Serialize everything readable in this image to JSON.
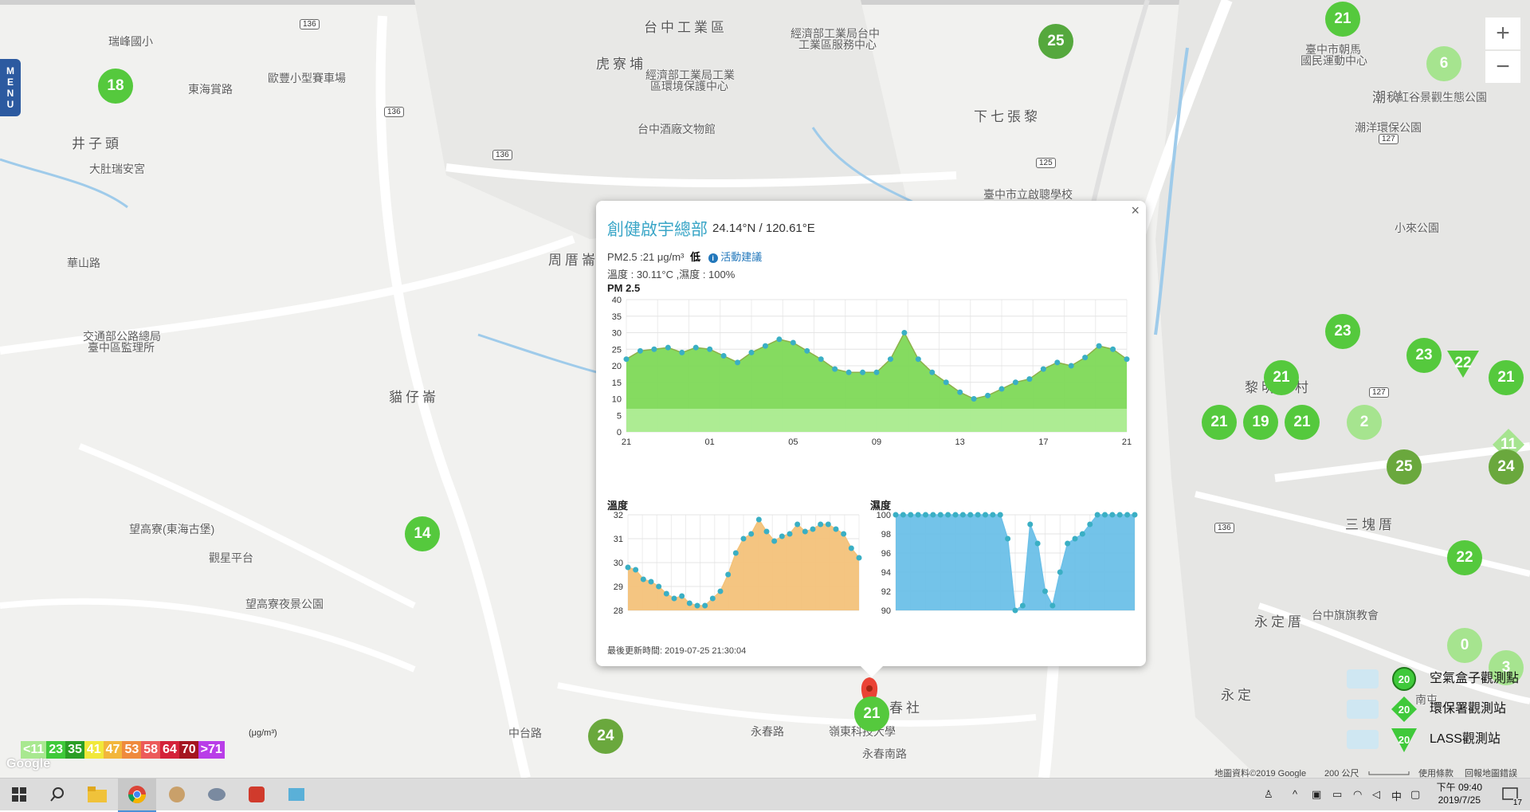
{
  "map": {
    "labels": [
      {
        "text": "台中工業區",
        "cls": "big",
        "x": 808,
        "y": 20
      },
      {
        "text": "瑞峰國小",
        "cls": "",
        "x": 136,
        "y": 42
      },
      {
        "text": "虎寮埔",
        "cls": "big",
        "x": 748,
        "y": 66
      },
      {
        "text": "經濟部工業局台中",
        "cls": "",
        "x": 992,
        "y": 32
      },
      {
        "text": "工業區服務中心",
        "cls": "",
        "x": 1002,
        "y": 46
      },
      {
        "text": "經濟部工業局工業",
        "cls": "",
        "x": 810,
        "y": 84
      },
      {
        "text": "區環境保護中心",
        "cls": "",
        "x": 816,
        "y": 98
      },
      {
        "text": "東海賞路",
        "cls": "",
        "x": 236,
        "y": 102
      },
      {
        "text": "歐豐小型賽車場",
        "cls": "",
        "x": 336,
        "y": 88
      },
      {
        "text": "井子頭",
        "cls": "big",
        "x": 90,
        "y": 166
      },
      {
        "text": "台中酒廠文物館",
        "cls": "",
        "x": 800,
        "y": 152
      },
      {
        "text": "下七張黎",
        "cls": "big",
        "x": 1222,
        "y": 132
      },
      {
        "text": "大肚瑞安宮",
        "cls": "",
        "x": 112,
        "y": 202
      },
      {
        "text": "臺中市立啟聰學校",
        "cls": "",
        "x": 1234,
        "y": 234
      },
      {
        "text": "周厝崙",
        "cls": "big",
        "x": 688,
        "y": 312
      },
      {
        "text": "華山路",
        "cls": "",
        "x": 84,
        "y": 320
      },
      {
        "text": "交通部公路總局",
        "cls": "",
        "x": 104,
        "y": 412
      },
      {
        "text": "臺中區監理所",
        "cls": "",
        "x": 110,
        "y": 426
      },
      {
        "text": "貓仔崙",
        "cls": "big",
        "x": 488,
        "y": 484
      },
      {
        "text": "潮洋",
        "cls": "big",
        "x": 1722,
        "y": 108
      },
      {
        "text": "臺中市朝馬",
        "cls": "",
        "x": 1638,
        "y": 52
      },
      {
        "text": "國民運動中心",
        "cls": "",
        "x": 1632,
        "y": 66
      },
      {
        "text": "秋紅谷景觀生態公園",
        "cls": "",
        "x": 1740,
        "y": 112
      },
      {
        "text": "潮洋環保公園",
        "cls": "",
        "x": 1700,
        "y": 150
      },
      {
        "text": "小來公園",
        "cls": "",
        "x": 1750,
        "y": 276
      },
      {
        "text": "三塊厝",
        "cls": "big",
        "x": 1688,
        "y": 644
      },
      {
        "text": "黎明新村",
        "cls": "big",
        "x": 1562,
        "y": 472
      },
      {
        "text": "永定厝",
        "cls": "big",
        "x": 1574,
        "y": 766
      },
      {
        "text": "台中旗旗教會",
        "cls": "",
        "x": 1646,
        "y": 762
      },
      {
        "text": "望高寮(東海古堡)",
        "cls": "",
        "x": 162,
        "y": 654
      },
      {
        "text": "觀星平台",
        "cls": "",
        "x": 262,
        "y": 690
      },
      {
        "text": "望高寮夜景公園",
        "cls": "",
        "x": 308,
        "y": 748
      },
      {
        "text": "春社",
        "cls": "big",
        "x": 1116,
        "y": 874
      },
      {
        "text": "嶺東科技大學",
        "cls": "",
        "x": 1040,
        "y": 908
      },
      {
        "text": "永春南路",
        "cls": "",
        "x": 1082,
        "y": 936
      },
      {
        "text": "中台路",
        "cls": "",
        "x": 638,
        "y": 910
      },
      {
        "text": "永春路",
        "cls": "",
        "x": 942,
        "y": 908
      },
      {
        "text": "永定",
        "cls": "big",
        "x": 1532,
        "y": 858
      },
      {
        "text": "南屯",
        "cls": "",
        "x": 1776,
        "y": 868
      }
    ],
    "shields": [
      {
        "text": "136",
        "x": 376,
        "y": 24
      },
      {
        "text": "136",
        "x": 482,
        "y": 134
      },
      {
        "text": "136",
        "x": 618,
        "y": 188
      },
      {
        "text": "125",
        "x": 1300,
        "y": 198
      },
      {
        "text": "136",
        "x": 1524,
        "y": 656
      },
      {
        "text": "127",
        "x": 1718,
        "y": 486
      },
      {
        "text": "127",
        "x": 1730,
        "y": 168
      }
    ],
    "markers": [
      {
        "value": "18",
        "x": 145,
        "y": 108,
        "color": "#55c93d",
        "shape": "circle"
      },
      {
        "value": "25",
        "x": 1325,
        "y": 52,
        "color": "#55a83d",
        "shape": "circle"
      },
      {
        "value": "21",
        "x": 1685,
        "y": 24,
        "color": "#55c93d",
        "shape": "circle"
      },
      {
        "value": "6",
        "x": 1812,
        "y": 80,
        "color": "#a6e48f",
        "shape": "circle"
      },
      {
        "value": "23",
        "x": 1685,
        "y": 416,
        "color": "#55c93d",
        "shape": "circle"
      },
      {
        "value": "23",
        "x": 1787,
        "y": 446,
        "color": "#55c93d",
        "shape": "circle"
      },
      {
        "value": "22",
        "x": 1836,
        "y": 456,
        "color": "#55c93d",
        "shape": "triangle"
      },
      {
        "value": "21",
        "x": 1890,
        "y": 474,
        "color": "#55c93d",
        "shape": "circle"
      },
      {
        "value": "21",
        "x": 1608,
        "y": 474,
        "color": "#55c93d",
        "shape": "circle"
      },
      {
        "value": "21",
        "x": 1530,
        "y": 530,
        "color": "#55c93d",
        "shape": "circle"
      },
      {
        "value": "19",
        "x": 1582,
        "y": 530,
        "color": "#55c93d",
        "shape": "circle"
      },
      {
        "value": "21",
        "x": 1634,
        "y": 530,
        "color": "#55c93d",
        "shape": "circle"
      },
      {
        "value": "2",
        "x": 1712,
        "y": 530,
        "color": "#a6e48f",
        "shape": "circle"
      },
      {
        "value": "11",
        "x": 1893,
        "y": 558,
        "color": "#a6e48f",
        "shape": "diamond"
      },
      {
        "value": "25",
        "x": 1762,
        "y": 586,
        "color": "#6aa83d",
        "shape": "circle"
      },
      {
        "value": "24",
        "x": 1890,
        "y": 586,
        "color": "#6aa83d",
        "shape": "circle"
      },
      {
        "value": "14",
        "x": 530,
        "y": 670,
        "color": "#55c93d",
        "shape": "circle"
      },
      {
        "value": "22",
        "x": 1838,
        "y": 700,
        "color": "#55c93d",
        "shape": "circle"
      },
      {
        "value": "0",
        "x": 1838,
        "y": 810,
        "color": "#a6e48f",
        "shape": "circle"
      },
      {
        "value": "3",
        "x": 1890,
        "y": 838,
        "color": "#a6e48f",
        "shape": "circle"
      },
      {
        "value": "21",
        "x": 1094,
        "y": 896,
        "color": "#55c93d",
        "shape": "circle"
      },
      {
        "value": "24",
        "x": 760,
        "y": 924,
        "color": "#6aa83d",
        "shape": "circle"
      }
    ]
  },
  "zoom": {
    "plus": "+",
    "minus": "−"
  },
  "menu": {
    "label": "MENU"
  },
  "popup": {
    "close": "×",
    "name": "創健啟宇總部",
    "coord": "24.14°N / 120.61°E",
    "pm_text": "PM2.5 :21 μg/m³",
    "level": "低",
    "info_icon": "i",
    "advice": "活動建議",
    "temp_hum": "溫度 : 30.11°C ,濕度 : 100%",
    "updated": "最後更新時間: 2019-07-25 21:30:04"
  },
  "chart_data": [
    {
      "type": "area",
      "title": "PM 2.5",
      "x_tick_labels": [
        "21",
        "01",
        "05",
        "09",
        "13",
        "17",
        "21"
      ],
      "ylim": [
        0,
        40
      ],
      "y_ticks": [
        0,
        5,
        10,
        15,
        20,
        25,
        30,
        35,
        40
      ],
      "values": [
        22,
        24.5,
        25,
        25.5,
        24,
        25.5,
        25,
        23,
        21,
        24,
        26,
        28,
        27,
        24.5,
        22,
        19,
        18,
        18,
        18,
        22,
        30,
        22,
        18,
        15,
        12,
        10,
        11,
        13,
        15,
        16,
        19,
        21,
        20,
        22.5,
        26,
        25,
        22
      ],
      "colors": {
        "fill": "#7ed957",
        "peak": "#8db04a",
        "band": "#b7f0a0",
        "point": "#3aafc4"
      },
      "grid": true
    },
    {
      "type": "area",
      "title": "溫度",
      "ylim": [
        28,
        32
      ],
      "y_ticks": [
        28,
        29,
        30,
        31,
        32
      ],
      "values": [
        29.8,
        29.7,
        29.3,
        29.2,
        29.0,
        28.7,
        28.5,
        28.6,
        28.3,
        28.2,
        28.2,
        28.5,
        28.8,
        29.5,
        30.4,
        31.0,
        31.2,
        31.8,
        31.3,
        30.9,
        31.1,
        31.2,
        31.6,
        31.3,
        31.4,
        31.6,
        31.6,
        31.4,
        31.2,
        30.6,
        30.2
      ],
      "colors": {
        "fill": "#f3c27a",
        "point": "#3aafc4"
      },
      "grid": true
    },
    {
      "type": "area",
      "title": "濕度",
      "ylim": [
        90,
        100
      ],
      "y_ticks": [
        90,
        92,
        94,
        96,
        98,
        100
      ],
      "values": [
        100,
        100,
        100,
        100,
        100,
        100,
        100,
        100,
        100,
        100,
        100,
        100,
        100,
        100,
        100,
        97.5,
        90,
        90.5,
        99,
        97,
        92,
        90.5,
        94,
        97,
        97.5,
        98,
        99,
        100,
        100,
        100,
        100,
        100,
        100
      ],
      "colors": {
        "fill": "#6cc0e8",
        "point": "#3aafc4"
      },
      "grid": true
    }
  ],
  "legend": {
    "unit": "(μg/m³)",
    "scale": [
      {
        "label": "<11",
        "color": "#a8e890"
      },
      {
        "label": "23",
        "color": "#3fc93a"
      },
      {
        "label": "35",
        "color": "#2a9e25"
      },
      {
        "label": "41",
        "color": "#f1e83a"
      },
      {
        "label": "47",
        "color": "#f2b63c"
      },
      {
        "label": "53",
        "color": "#ef8a3d"
      },
      {
        "label": "58",
        "color": "#ec5a5a"
      },
      {
        "label": "64",
        "color": "#d4223a"
      },
      {
        "label": "70",
        "color": "#a5161f"
      },
      {
        "label": ">71",
        "color": "#b93de8"
      }
    ],
    "stations": [
      {
        "label": "空氣盒子觀測點",
        "value": "20",
        "shape": "circle",
        "color": "#3fc93a"
      },
      {
        "label": "環保署觀測站",
        "value": "20",
        "shape": "diamond",
        "color": "#3fc93a"
      },
      {
        "label": "LASS觀測站",
        "value": "20",
        "shape": "triangle",
        "color": "#3fc93a"
      }
    ]
  },
  "attribution": {
    "google": "Google",
    "data": "地圖資料©2019 Google",
    "scale": "200 公尺",
    "terms": "使用條款",
    "report": "回報地圖錯誤"
  },
  "taskbar": {
    "time": "下午 09:40",
    "date": "2019/7/25",
    "ime": "中",
    "notifications": "17"
  }
}
